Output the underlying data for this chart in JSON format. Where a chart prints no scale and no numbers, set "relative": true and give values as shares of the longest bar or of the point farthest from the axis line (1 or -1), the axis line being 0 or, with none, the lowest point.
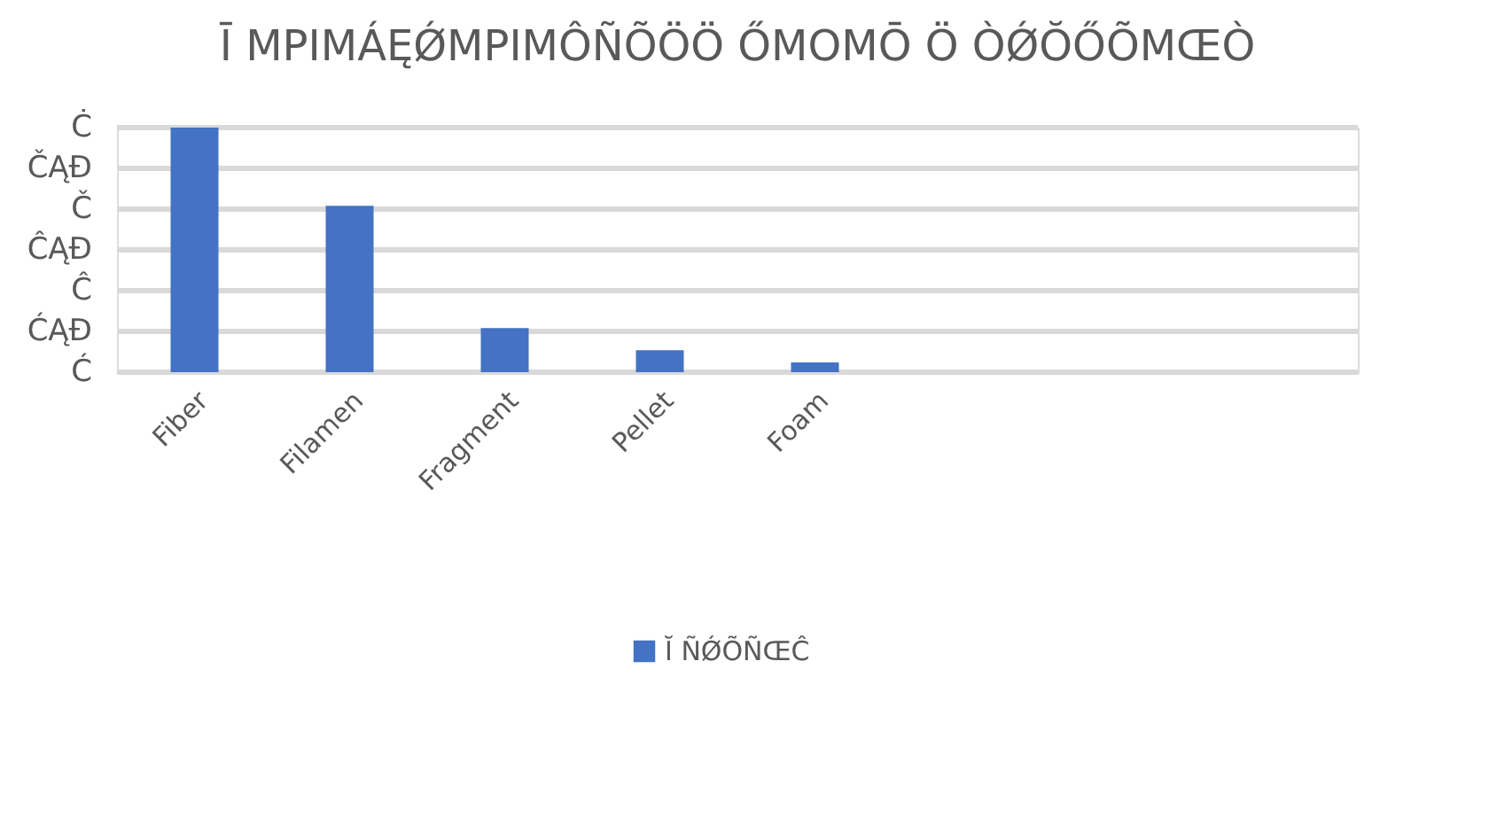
{
  "chart_data": {
    "type": "bar",
    "title": "Ī MPIMÁĘǾMPIMÔÑÕÖÖ ŐMOMŌ Ö ÒǾŎŐÕMŒÒ",
    "categories": [
      "Fiber",
      "Filamen",
      "Fragment",
      "Pellet",
      "Foam",
      null,
      null,
      null
    ],
    "series": [
      {
        "name": "Ĭ ÑǾÕÑŒĈ",
        "color": "#4472c4",
        "values": [
          1,
          0.68,
          0.18,
          0.09,
          0.04,
          null,
          null,
          null
        ]
      }
    ],
    "relative": true,
    "annotations": [
      "Ċ",
      "ČĄĐ",
      "Č",
      "ĈĄĐ",
      "Ĉ",
      "ĆĄĐ",
      "Ć"
    ],
    "grid": "y",
    "legend": "bottom"
  }
}
